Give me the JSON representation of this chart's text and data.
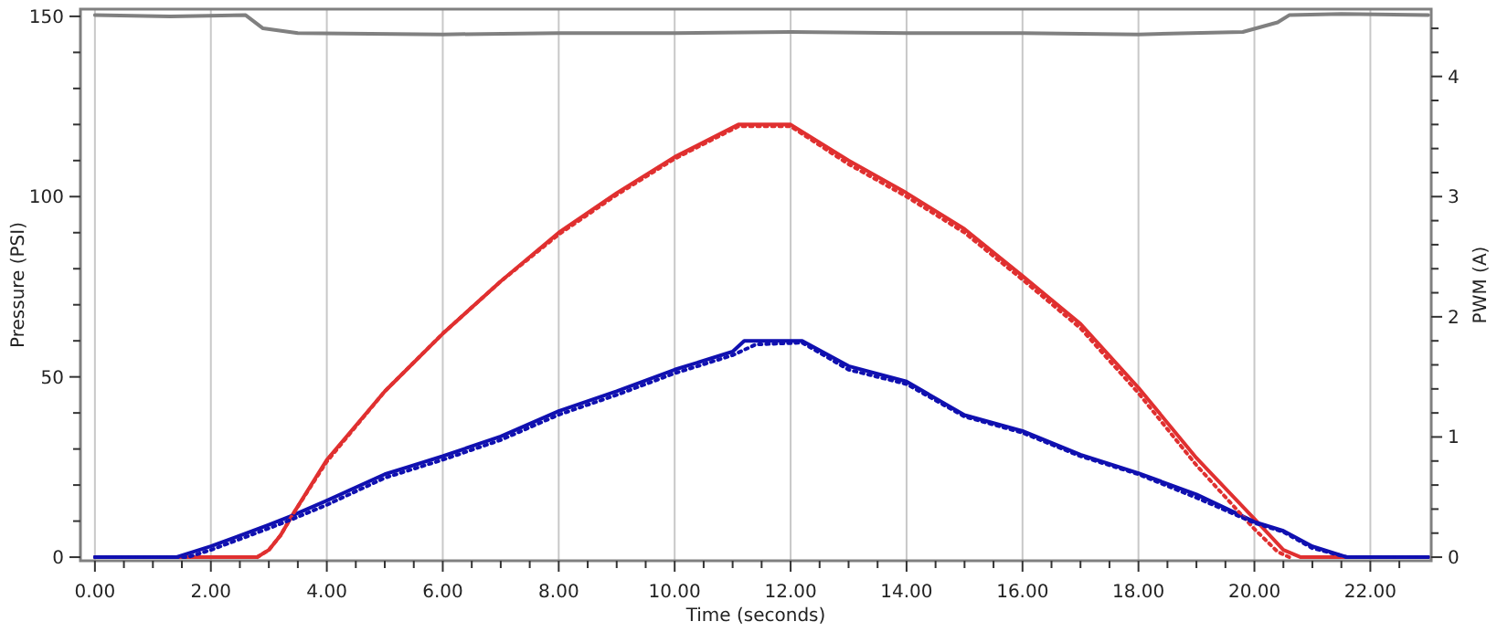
{
  "chart_data": {
    "type": "line",
    "xlabel": "Time (seconds)",
    "ylabel": "Pressure (PSI)",
    "y2label": "PWM (A)",
    "xlim": [
      -0.25,
      23.05
    ],
    "ylim": [
      -1,
      152
    ],
    "y2lim": [
      -0.03,
      4.56
    ],
    "xticks": [
      {
        "value": 0,
        "label": "0.00"
      },
      {
        "value": 0.5,
        "label": null
      },
      {
        "value": 1,
        "label": null
      },
      {
        "value": 1.5,
        "label": null
      },
      {
        "value": 2,
        "label": "2.00"
      },
      {
        "value": 2.5,
        "label": null
      },
      {
        "value": 3,
        "label": null
      },
      {
        "value": 3.5,
        "label": null
      },
      {
        "value": 4,
        "label": "4.00"
      },
      {
        "value": 4.5,
        "label": null
      },
      {
        "value": 5,
        "label": null
      },
      {
        "value": 5.5,
        "label": null
      },
      {
        "value": 6,
        "label": "6.00"
      },
      {
        "value": 6.5,
        "label": null
      },
      {
        "value": 7,
        "label": null
      },
      {
        "value": 7.5,
        "label": null
      },
      {
        "value": 8,
        "label": "8.00"
      },
      {
        "value": 8.5,
        "label": null
      },
      {
        "value": 9,
        "label": null
      },
      {
        "value": 9.5,
        "label": null
      },
      {
        "value": 10,
        "label": "10.00"
      },
      {
        "value": 10.5,
        "label": null
      },
      {
        "value": 11,
        "label": null
      },
      {
        "value": 11.5,
        "label": null
      },
      {
        "value": 12,
        "label": "12.00"
      },
      {
        "value": 12.5,
        "label": null
      },
      {
        "value": 13,
        "label": null
      },
      {
        "value": 13.5,
        "label": null
      },
      {
        "value": 14,
        "label": "14.00"
      },
      {
        "value": 14.5,
        "label": null
      },
      {
        "value": 15,
        "label": null
      },
      {
        "value": 15.5,
        "label": null
      },
      {
        "value": 16,
        "label": "16.00"
      },
      {
        "value": 16.5,
        "label": null
      },
      {
        "value": 17,
        "label": null
      },
      {
        "value": 17.5,
        "label": null
      },
      {
        "value": 18,
        "label": "18.00"
      },
      {
        "value": 18.5,
        "label": null
      },
      {
        "value": 19,
        "label": null
      },
      {
        "value": 19.5,
        "label": null
      },
      {
        "value": 20,
        "label": "20.00"
      },
      {
        "value": 20.5,
        "label": null
      },
      {
        "value": 21,
        "label": null
      },
      {
        "value": 21.5,
        "label": null
      },
      {
        "value": 22,
        "label": "22.00"
      },
      {
        "value": 22.5,
        "label": null
      }
    ],
    "yticks": [
      0,
      {
        "value": 10,
        "label": null
      },
      {
        "value": 20,
        "label": null
      },
      {
        "value": 30,
        "label": null
      },
      {
        "value": 40,
        "label": null
      },
      50,
      {
        "value": 60,
        "label": null
      },
      {
        "value": 70,
        "label": null
      },
      {
        "value": 80,
        "label": null
      },
      {
        "value": 90,
        "label": null
      },
      100,
      {
        "value": 110,
        "label": null
      },
      {
        "value": 120,
        "label": null
      },
      {
        "value": 130,
        "label": null
      },
      {
        "value": 140,
        "label": null
      },
      150
    ],
    "y2ticks": [
      0,
      {
        "value": 0.2,
        "label": null
      },
      {
        "value": 0.4,
        "label": null
      },
      {
        "value": 0.6,
        "label": null
      },
      {
        "value": 0.8,
        "label": null
      },
      1,
      {
        "value": 1.2,
        "label": null
      },
      {
        "value": 1.4,
        "label": null
      },
      {
        "value": 1.6,
        "label": null
      },
      {
        "value": 1.8,
        "label": null
      },
      2,
      {
        "value": 2.2,
        "label": null
      },
      {
        "value": 2.4,
        "label": null
      },
      {
        "value": 2.6,
        "label": null
      },
      {
        "value": 2.8,
        "label": null
      },
      3,
      {
        "value": 3.2,
        "label": null
      },
      {
        "value": 3.4,
        "label": null
      },
      {
        "value": 3.6,
        "label": null
      },
      {
        "value": 3.8,
        "label": null
      },
      4,
      {
        "value": 4.2,
        "label": null
      },
      {
        "value": 4.4,
        "label": null
      }
    ],
    "grid": "x",
    "marker": "none",
    "series": [
      {
        "color": "#808080",
        "axis": "y2",
        "line_style": "solid",
        "x": [
          0,
          1.3,
          2.6,
          2.9,
          3.5,
          6,
          8,
          10,
          12,
          14,
          16,
          18,
          19.8,
          20.4,
          20.6,
          21.5,
          23
        ],
        "values": [
          4.51,
          4.5,
          4.51,
          4.4,
          4.36,
          4.35,
          4.36,
          4.36,
          4.37,
          4.36,
          4.36,
          4.35,
          4.37,
          4.45,
          4.51,
          4.52,
          4.51
        ]
      },
      {
        "color": "#e03030",
        "line_style": "solid",
        "x": [
          0,
          2.8,
          3,
          3.2,
          3.4,
          4,
          5,
          6,
          7,
          8,
          9,
          10,
          11.1,
          12,
          13,
          14,
          15,
          16,
          17,
          18,
          19,
          20,
          20.5,
          20.8,
          23
        ],
        "values": [
          0,
          0,
          2,
          6,
          11.5,
          27,
          46,
          62,
          76.5,
          90,
          101,
          111,
          120,
          120,
          110,
          101,
          91,
          78,
          64.7,
          47,
          27.5,
          10.6,
          2,
          0,
          0
        ]
      },
      {
        "color": "#e03030",
        "line_style": "dotted",
        "x": [
          2.8,
          3,
          3.2,
          3.4,
          4,
          5,
          6,
          7,
          8,
          9,
          10,
          11.1,
          12,
          13,
          14,
          15,
          16,
          17,
          18,
          19,
          20,
          20.4,
          20.6
        ],
        "values": [
          0,
          2,
          6,
          11.5,
          26.5,
          46,
          62,
          76.5,
          89.5,
          100.5,
          110.5,
          119.5,
          119.5,
          109,
          100,
          90,
          77,
          63.5,
          45.5,
          25.5,
          7.8,
          1.5,
          0
        ]
      },
      {
        "color": "#1010b0",
        "line_style": "solid",
        "x": [
          0,
          1.4,
          2,
          3,
          3.4,
          4,
          5,
          6,
          7,
          8,
          9,
          10,
          11,
          11.2,
          12.2,
          13,
          14,
          15,
          16,
          17,
          18,
          19,
          20,
          20.5,
          21,
          21.6,
          23
        ],
        "values": [
          0,
          0,
          3,
          9,
          11.5,
          15.7,
          23,
          28,
          33.5,
          40.5,
          46,
          52,
          57,
          60,
          60,
          53,
          48.7,
          39.4,
          35,
          28.4,
          23.3,
          17.4,
          9.8,
          7.3,
          3,
          0,
          0
        ]
      },
      {
        "color": "#1010b0",
        "line_style": "dotted",
        "x": [
          0,
          1.6,
          2,
          3,
          3.4,
          4,
          5,
          6,
          7,
          8,
          9,
          10,
          11,
          11.4,
          12.2,
          13,
          14,
          15,
          16,
          17,
          18,
          19,
          20,
          20.5,
          21,
          21.6,
          23
        ],
        "values": [
          0,
          0,
          2,
          8,
          10.5,
          14.5,
          22,
          27,
          32.5,
          39.5,
          45,
          51,
          56,
          59,
          59.5,
          52,
          48,
          39,
          34.5,
          28,
          23,
          16.5,
          9.5,
          7,
          2.5,
          0,
          0
        ]
      }
    ]
  }
}
